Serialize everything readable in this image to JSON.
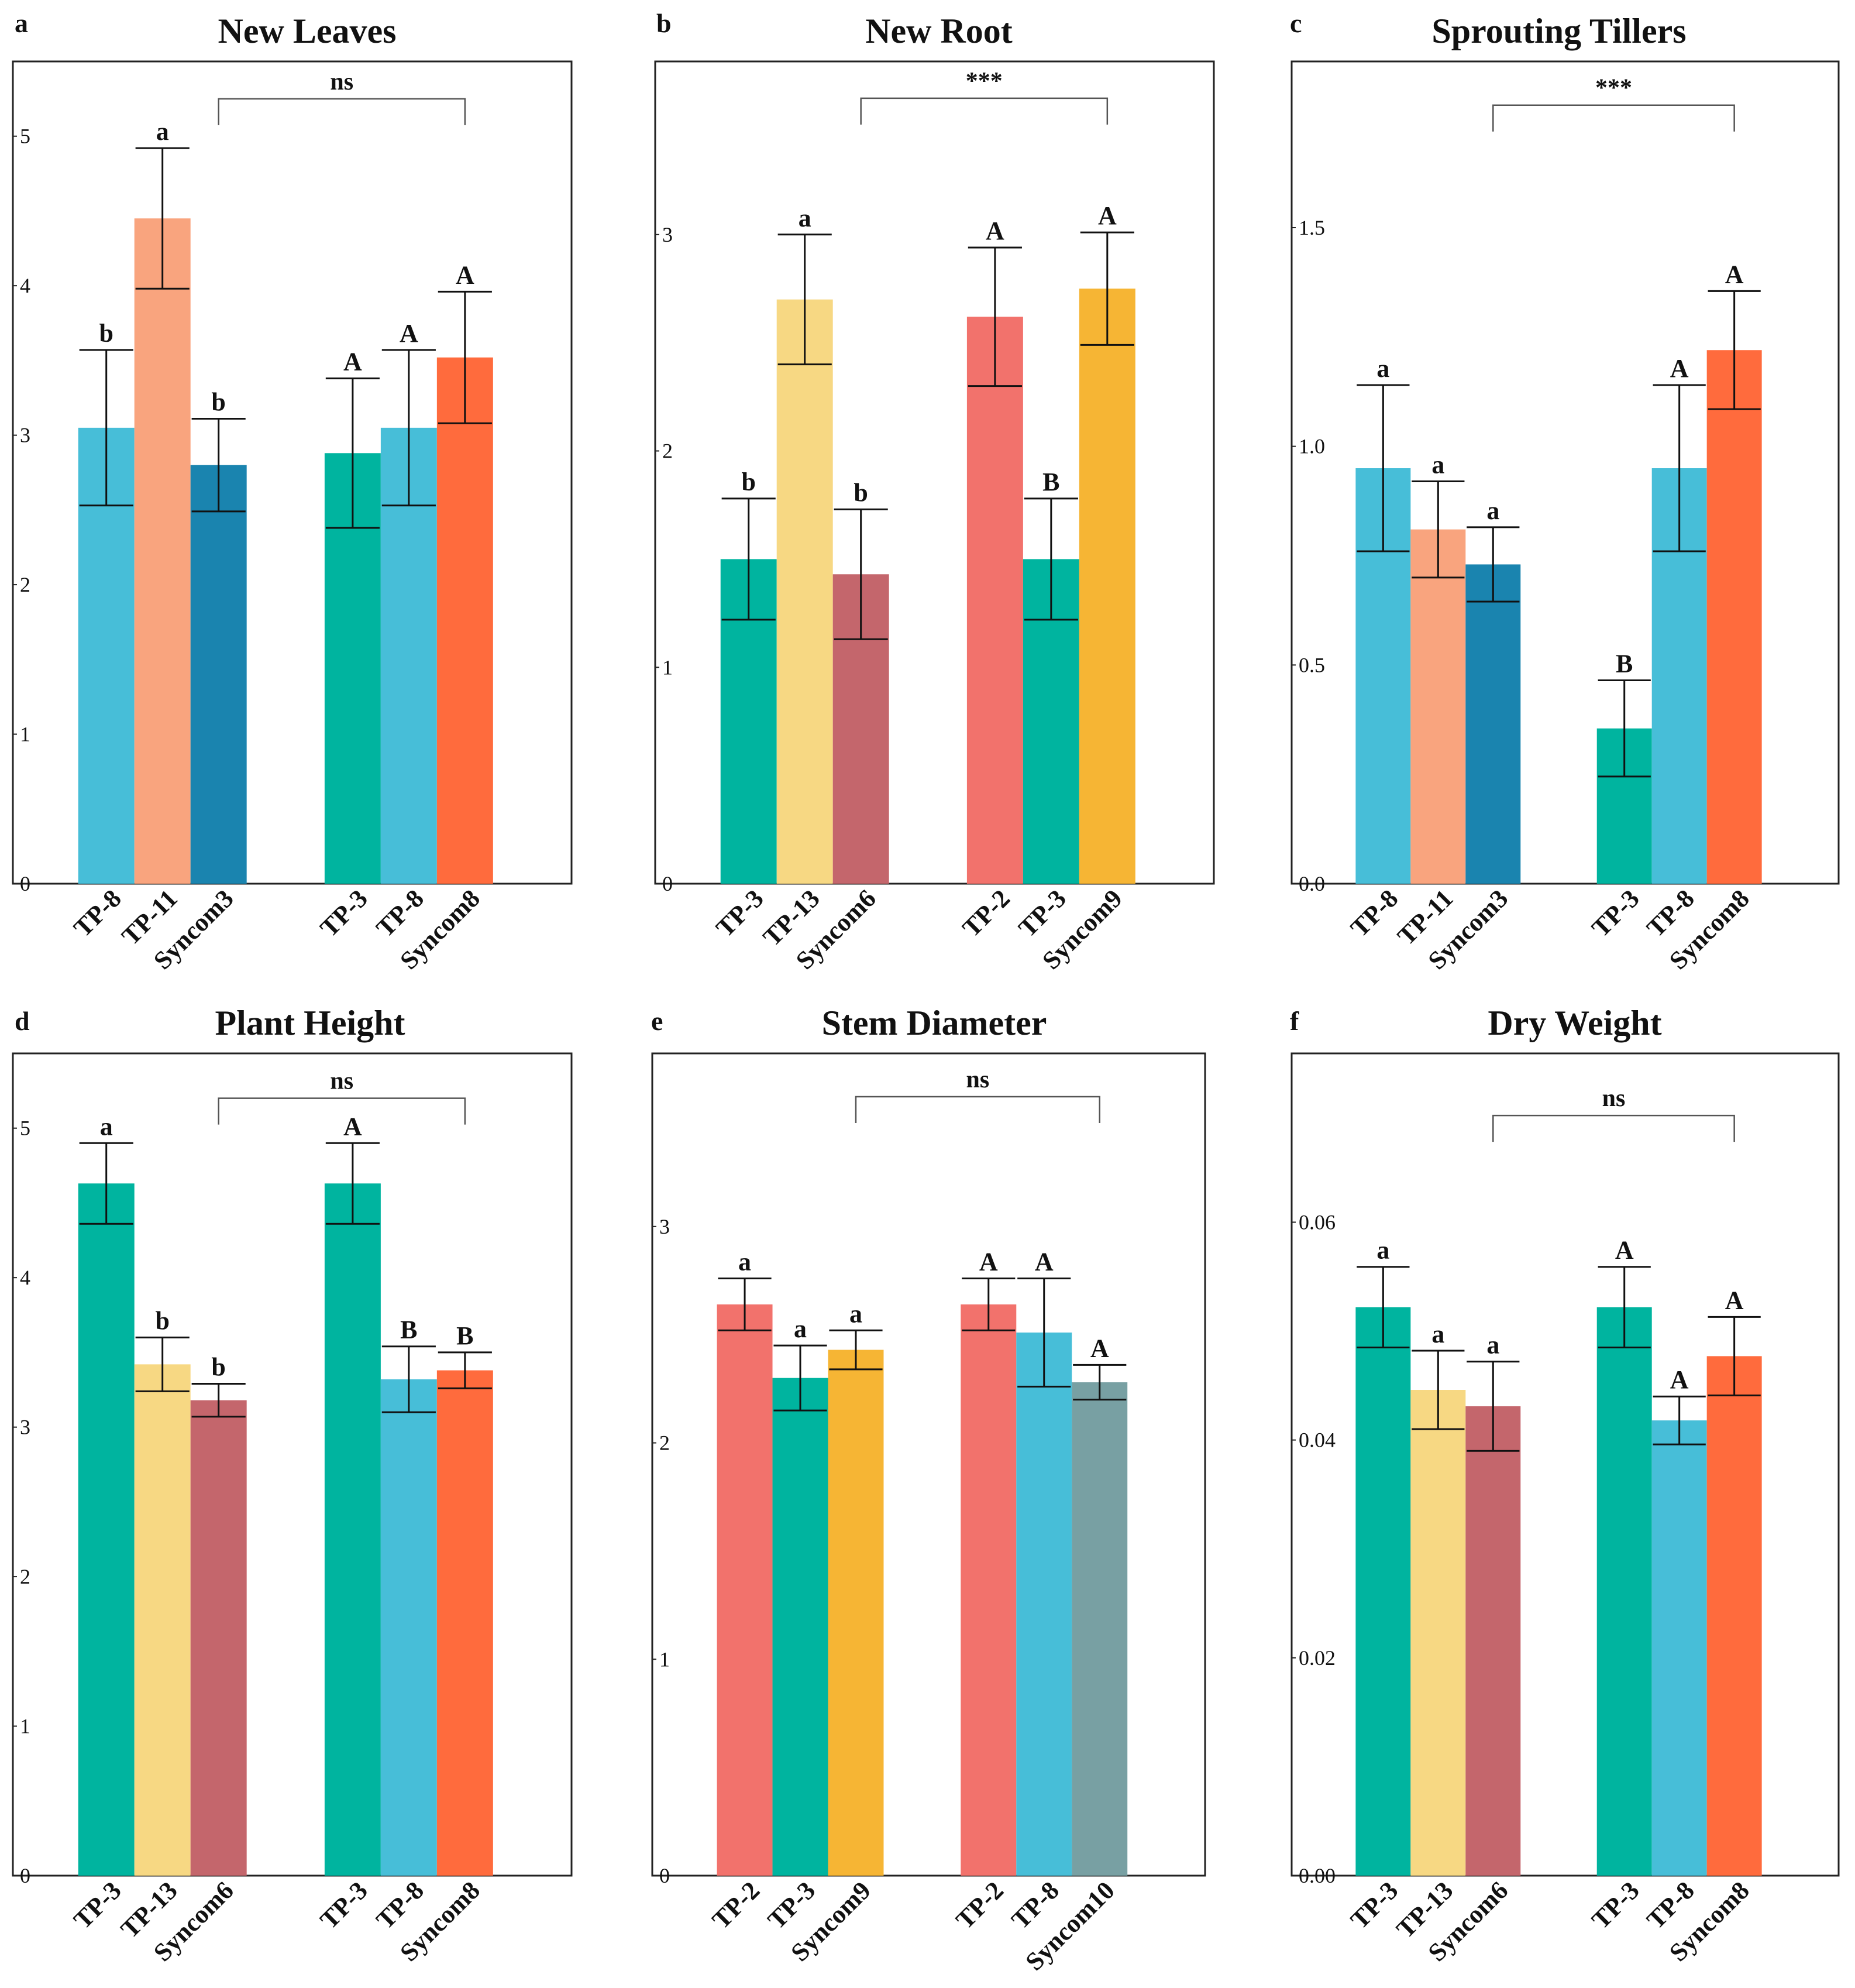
{
  "chart_data": [
    {
      "panel": "a",
      "type": "bar",
      "title": "New Leaves",
      "ylim": [
        0,
        5.5
      ],
      "ticks": [
        0,
        1,
        2,
        3,
        4,
        5
      ],
      "grid": false,
      "groups": [
        {
          "bars": [
            {
              "label": "TP-8",
              "value": 3.05,
              "error": 0.52,
              "letter": "b",
              "color": "#47BED8"
            },
            {
              "label": "TP-11",
              "value": 4.45,
              "error": 0.47,
              "letter": "a",
              "color": "#F9A47E"
            },
            {
              "label": "Syncom3",
              "value": 2.8,
              "error": 0.31,
              "letter": "b",
              "color": "#1A84AF"
            }
          ]
        },
        {
          "bars": [
            {
              "label": "TP-3",
              "value": 2.88,
              "error": 0.5,
              "letter": "A",
              "color": "#00B49F"
            },
            {
              "label": "TP-8",
              "value": 3.05,
              "error": 0.52,
              "letter": "A",
              "color": "#47BED8"
            },
            {
              "label": "Syncom8",
              "value": 3.52,
              "error": 0.44,
              "letter": "A",
              "color": "#FF6B3D"
            }
          ]
        }
      ],
      "comparison": "ns",
      "comparison_level": 5.25
    },
    {
      "panel": "b",
      "type": "bar",
      "title": "New Root",
      "ylim": [
        0,
        3.8
      ],
      "ticks": [
        0,
        1,
        2,
        3
      ],
      "grid": false,
      "groups": [
        {
          "bars": [
            {
              "label": "TP-3",
              "value": 1.5,
              "error": 0.28,
              "letter": "b",
              "color": "#00B49F"
            },
            {
              "label": "TP-13",
              "value": 2.7,
              "error": 0.3,
              "letter": "a",
              "color": "#F7D883"
            },
            {
              "label": "Syncom6",
              "value": 1.43,
              "error": 0.3,
              "letter": "b",
              "color": "#C4666C"
            }
          ]
        },
        {
          "bars": [
            {
              "label": "TP-2",
              "value": 2.62,
              "error": 0.32,
              "letter": "A",
              "color": "#F2726C"
            },
            {
              "label": "TP-3",
              "value": 1.5,
              "error": 0.28,
              "letter": "B",
              "color": "#00B49F"
            },
            {
              "label": "Syncom9",
              "value": 2.75,
              "error": 0.26,
              "letter": "A",
              "color": "#F6B534"
            }
          ]
        }
      ],
      "comparison": "***",
      "comparison_level": 3.63
    },
    {
      "panel": "c",
      "type": "bar",
      "title": "Sprouting Tillers",
      "ylim": [
        0,
        1.88
      ],
      "ticks": [
        0.0,
        0.5,
        1.0,
        1.5
      ],
      "tick_labels": [
        "0.0",
        "0.5",
        "1.0",
        "1.5"
      ],
      "grid": false,
      "groups": [
        {
          "bars": [
            {
              "label": "TP-8",
              "value": 0.95,
              "error": 0.19,
              "letter": "a",
              "color": "#47BED8"
            },
            {
              "label": "TP-11",
              "value": 0.81,
              "error": 0.11,
              "letter": "a",
              "color": "#F9A47E"
            },
            {
              "label": "Syncom3",
              "value": 0.73,
              "error": 0.085,
              "letter": "a",
              "color": "#1A84AF"
            }
          ]
        },
        {
          "bars": [
            {
              "label": "TP-3",
              "value": 0.355,
              "error": 0.11,
              "letter": "B",
              "color": "#00B49F"
            },
            {
              "label": "TP-8",
              "value": 0.95,
              "error": 0.19,
              "letter": "A",
              "color": "#47BED8"
            },
            {
              "label": "Syncom8",
              "value": 1.22,
              "error": 0.135,
              "letter": "A",
              "color": "#FF6B3D"
            }
          ]
        }
      ],
      "comparison": "***",
      "comparison_level": 1.78
    },
    {
      "panel": "d",
      "type": "bar",
      "title": "Plant Height",
      "ylim": [
        0,
        5.5
      ],
      "ticks": [
        0,
        1,
        2,
        3,
        4,
        5
      ],
      "grid": false,
      "groups": [
        {
          "bars": [
            {
              "label": "TP-3",
              "value": 4.63,
              "error": 0.27,
              "letter": "a",
              "color": "#00B49F"
            },
            {
              "label": "TP-13",
              "value": 3.42,
              "error": 0.18,
              "letter": "b",
              "color": "#F7D883"
            },
            {
              "label": "Syncom6",
              "value": 3.18,
              "error": 0.11,
              "letter": "b",
              "color": "#C4666C"
            }
          ]
        },
        {
          "bars": [
            {
              "label": "TP-3",
              "value": 4.63,
              "error": 0.27,
              "letter": "A",
              "color": "#00B49F"
            },
            {
              "label": "TP-8",
              "value": 3.32,
              "error": 0.22,
              "letter": "B",
              "color": "#47BED8"
            },
            {
              "label": "Syncom8",
              "value": 3.38,
              "error": 0.12,
              "letter": "B",
              "color": "#FF6B3D"
            }
          ]
        }
      ],
      "comparison": "ns",
      "comparison_level": 5.2
    },
    {
      "panel": "e",
      "type": "bar",
      "title": "Stem Diameter",
      "ylim": [
        0,
        3.8
      ],
      "ticks": [
        0,
        1,
        2,
        3
      ],
      "grid": false,
      "groups": [
        {
          "bars": [
            {
              "label": "TP-2",
              "value": 2.64,
              "error": 0.12,
              "letter": "a",
              "color": "#F2726C"
            },
            {
              "label": "TP-3",
              "value": 2.3,
              "error": 0.15,
              "letter": "a",
              "color": "#00B49F"
            },
            {
              "label": "Syncom9",
              "value": 2.43,
              "error": 0.09,
              "letter": "a",
              "color": "#F6B534"
            }
          ]
        },
        {
          "bars": [
            {
              "label": "TP-2",
              "value": 2.64,
              "error": 0.12,
              "letter": "A",
              "color": "#F2726C"
            },
            {
              "label": "TP-8",
              "value": 2.51,
              "error": 0.25,
              "letter": "A",
              "color": "#47BED8"
            },
            {
              "label": "Syncom10",
              "value": 2.28,
              "error": 0.08,
              "letter": "A",
              "color": "#78A0A3"
            }
          ]
        }
      ],
      "comparison": "ns",
      "comparison_level": 3.6
    },
    {
      "panel": "f",
      "type": "bar",
      "title": "Dry Weight",
      "ylim": [
        0,
        0.0755
      ],
      "ticks": [
        0.0,
        0.02,
        0.04,
        0.06
      ],
      "tick_labels": [
        "0.00",
        "0.02",
        "0.04",
        "0.06"
      ],
      "grid": false,
      "groups": [
        {
          "bars": [
            {
              "label": "TP-3",
              "value": 0.0522,
              "error": 0.0037,
              "letter": "a",
              "color": "#00B49F"
            },
            {
              "label": "TP-13",
              "value": 0.0446,
              "error": 0.0036,
              "letter": "a",
              "color": "#F7D883"
            },
            {
              "label": "Syncom6",
              "value": 0.0431,
              "error": 0.0041,
              "letter": "a",
              "color": "#C4666C"
            }
          ]
        },
        {
          "bars": [
            {
              "label": "TP-3",
              "value": 0.0522,
              "error": 0.0037,
              "letter": "A",
              "color": "#00B49F"
            },
            {
              "label": "TP-8",
              "value": 0.0418,
              "error": 0.0022,
              "letter": "A",
              "color": "#47BED8"
            },
            {
              "label": "Syncom8",
              "value": 0.0477,
              "error": 0.0036,
              "letter": "A",
              "color": "#FF6B3D"
            }
          ]
        }
      ],
      "comparison": "ns",
      "comparison_level": 0.0698
    }
  ]
}
